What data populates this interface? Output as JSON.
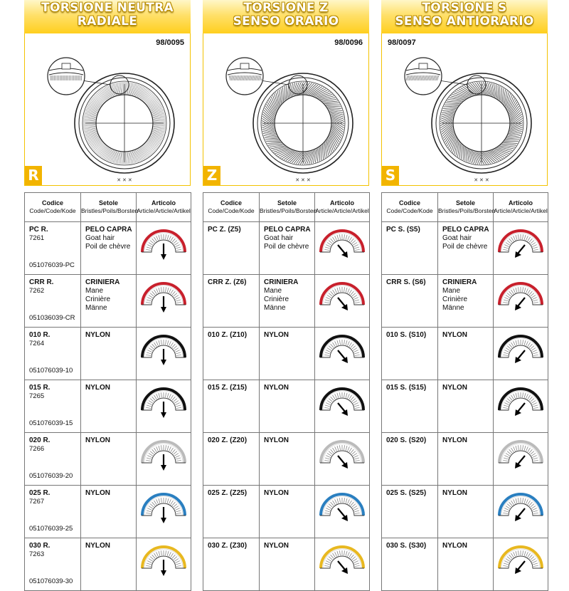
{
  "columns": [
    {
      "id": "r",
      "title_line1": "TORSIONE NEUTRA",
      "title_line2": "RADIALE",
      "ref": "98/0095",
      "badge": "R",
      "pattern": "radial",
      "arrow": "down",
      "headers": {
        "code": "Codice",
        "code_sub": "Code/Code/Kode",
        "bristles": "Setole",
        "bristles_sub": "Bristles/Poils/Borsten",
        "article": "Articolo",
        "article_sub": "Article/Article/Artikel"
      },
      "rows": [
        {
          "code": "PC R.",
          "num": "7261",
          "sku": "051076039-PC",
          "bristle": [
            "PELO CAPRA",
            "Goat hair",
            "Poil de chèvre"
          ],
          "color": "#c8202c"
        },
        {
          "code": "CRR R.",
          "num": "7262",
          "sku": "051036039-CR",
          "bristle": [
            "CRINIERA",
            "Mane",
            "Crinière",
            "Männe"
          ],
          "color": "#c8202c"
        },
        {
          "code": "010 R.",
          "num": "7264",
          "sku": "051076039-10",
          "bristle": [
            "NYLON"
          ],
          "color": "#111111"
        },
        {
          "code": "015 R.",
          "num": "7265",
          "sku": "051076039-15",
          "bristle": [
            "NYLON"
          ],
          "color": "#111111"
        },
        {
          "code": "020 R.",
          "num": "7266",
          "sku": "051076039-20",
          "bristle": [
            "NYLON"
          ],
          "color": "#bbbbbb"
        },
        {
          "code": "025 R.",
          "num": "7267",
          "sku": "051076039-25",
          "bristle": [
            "NYLON"
          ],
          "color": "#2a7fc0"
        },
        {
          "code": "030 R.",
          "num": "7263",
          "sku": "051076039-30",
          "bristle": [
            "NYLON"
          ],
          "color": "#e8b820"
        }
      ]
    },
    {
      "id": "z",
      "title_line1": "TORSIONE Z",
      "title_line2": "SENSO ORARIO",
      "ref": "98/0096",
      "badge": "Z",
      "pattern": "clockwise",
      "arrow": "right",
      "headers": {
        "code": "Codice",
        "code_sub": "Code/Code/Kode",
        "bristles": "Setole",
        "bristles_sub": "Bristles/Poils/Borsten",
        "article": "Articolo",
        "article_sub": "Article/Article/Artikel"
      },
      "rows": [
        {
          "code": "PC Z. (Z5)",
          "bristle": [
            "PELO CAPRA",
            "Goat hair",
            "Poil de chèvre"
          ],
          "color": "#c8202c"
        },
        {
          "code": "CRR Z. (Z6)",
          "bristle": [
            "CRINIERA",
            "Mane",
            "Crinière",
            "Männe"
          ],
          "color": "#c8202c"
        },
        {
          "code": "010 Z. (Z10)",
          "bristle": [
            "NYLON"
          ],
          "color": "#111111"
        },
        {
          "code": "015 Z. (Z15)",
          "bristle": [
            "NYLON"
          ],
          "color": "#111111"
        },
        {
          "code": "020 Z. (Z20)",
          "bristle": [
            "NYLON"
          ],
          "color": "#bbbbbb"
        },
        {
          "code": "025 Z. (Z25)",
          "bristle": [
            "NYLON"
          ],
          "color": "#2a7fc0"
        },
        {
          "code": "030 Z. (Z30)",
          "bristle": [
            "NYLON"
          ],
          "color": "#e8b820"
        }
      ]
    },
    {
      "id": "s",
      "title_line1": "TORSIONE S",
      "title_line2": "SENSO ANTIORARIO",
      "ref": "98/0097",
      "badge": "S",
      "pattern": "counterclockwise",
      "arrow": "left",
      "headers": {
        "code": "Codice",
        "code_sub": "Code/Code/Kode",
        "bristles": "Setole",
        "bristles_sub": "Bristles/Poils/Borsten",
        "article": "Articolo",
        "article_sub": "Article/Article/Artikel"
      },
      "rows": [
        {
          "code": "PC S. (S5)",
          "bristle": [
            "PELO CAPRA",
            "Goat hair",
            "Poil de chèvre"
          ],
          "color": "#c8202c"
        },
        {
          "code": "CRR S. (S6)",
          "bristle": [
            "CRINIERA",
            "Mane",
            "Crinière",
            "Männe"
          ],
          "color": "#c8202c"
        },
        {
          "code": "010 S. (S10)",
          "bristle": [
            "NYLON"
          ],
          "color": "#111111"
        },
        {
          "code": "015 S. (S15)",
          "bristle": [
            "NYLON"
          ],
          "color": "#111111"
        },
        {
          "code": "020 S. (S20)",
          "bristle": [
            "NYLON"
          ],
          "color": "#bbbbbb"
        },
        {
          "code": "025 S. (S25)",
          "bristle": [
            "NYLON"
          ],
          "color": "#2a7fc0"
        },
        {
          "code": "030 S. (S30)",
          "bristle": [
            "NYLON"
          ],
          "color": "#e8b820"
        }
      ]
    }
  ]
}
